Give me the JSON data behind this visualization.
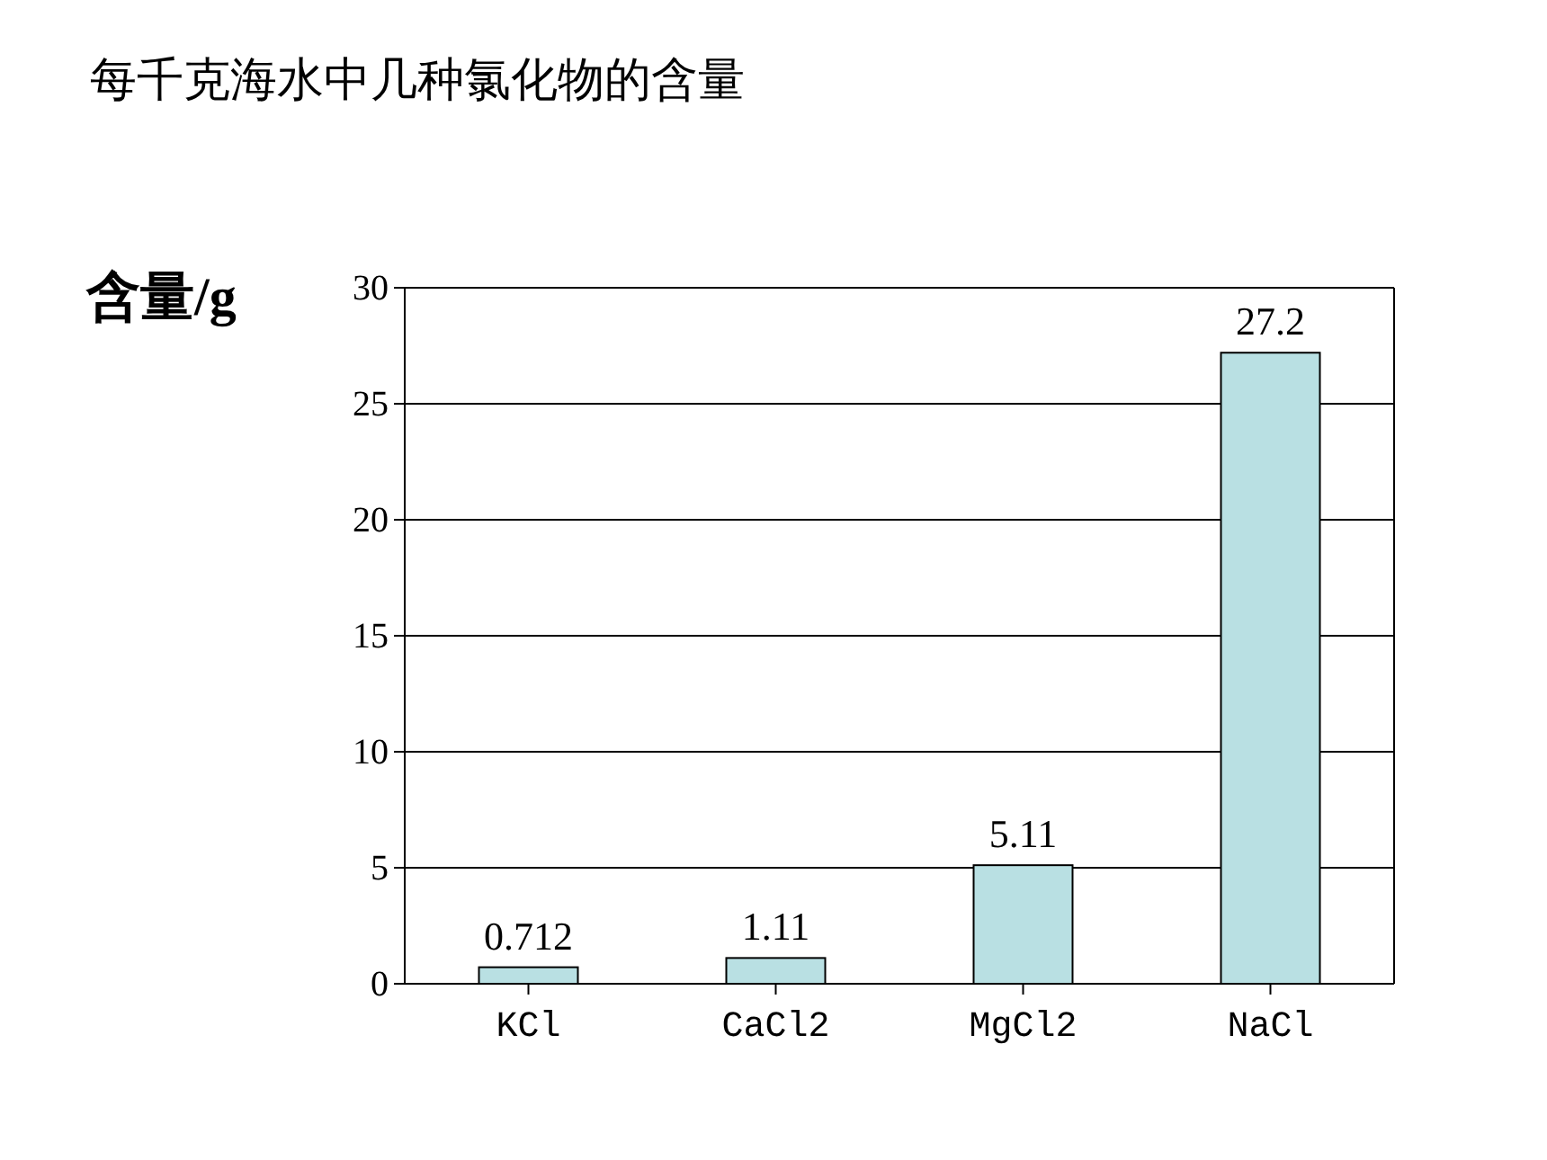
{
  "chart_data": {
    "type": "bar",
    "title": "每千克海水中几种氯化物的含量",
    "ylabel": "含量/g",
    "categories": [
      "KCl",
      "CaCl2",
      "MgCl2",
      "NaCl"
    ],
    "values": [
      0.712,
      1.11,
      5.11,
      27.2
    ],
    "color": "#b9e0e3",
    "ylim": [
      0,
      30
    ],
    "yticks": [
      0,
      5,
      10,
      15,
      20,
      25,
      30
    ],
    "grid": "y",
    "data_labels": true
  }
}
